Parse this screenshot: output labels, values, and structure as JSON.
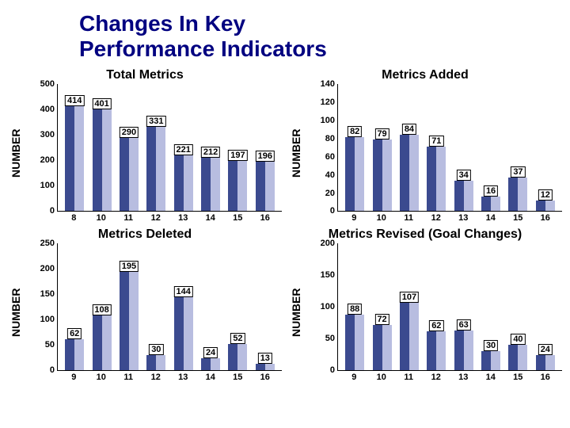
{
  "title_line1": "Changes In Key",
  "title_line2": "Performance Indicators",
  "ylabel": "NUMBER",
  "bar_color_dark": "#3b4a8f",
  "bar_color_light": "#b8bde0",
  "label_box_bg": "#ffffff",
  "label_box_border": "#000000",
  "charts": {
    "total": {
      "title": "Total Metrics",
      "ymax": 500,
      "ytick_step": 100,
      "categories": [
        "8",
        "10",
        "11",
        "12",
        "13",
        "14",
        "15",
        "16"
      ],
      "values": [
        414,
        401,
        290,
        331,
        221,
        212,
        197,
        196
      ]
    },
    "added": {
      "title": "Metrics Added",
      "ymax": 140,
      "ytick_step": 20,
      "categories": [
        "9",
        "10",
        "11",
        "12",
        "13",
        "14",
        "15",
        "16"
      ],
      "values": [
        82,
        79,
        84,
        71,
        34,
        16,
        37,
        12
      ]
    },
    "deleted": {
      "title": "Metrics Deleted",
      "ymax": 250,
      "ytick_step": 50,
      "categories": [
        "9",
        "10",
        "11",
        "12",
        "13",
        "14",
        "15",
        "16"
      ],
      "values": [
        62,
        108,
        195,
        30,
        144,
        24,
        52,
        13
      ]
    },
    "revised": {
      "title": "Metrics Revised (Goal Changes)",
      "ymax": 200,
      "ytick_step": 50,
      "categories": [
        "9",
        "10",
        "11",
        "12",
        "13",
        "14",
        "15",
        "16"
      ],
      "values": [
        88,
        72,
        107,
        62,
        63,
        30,
        40,
        24
      ]
    }
  }
}
